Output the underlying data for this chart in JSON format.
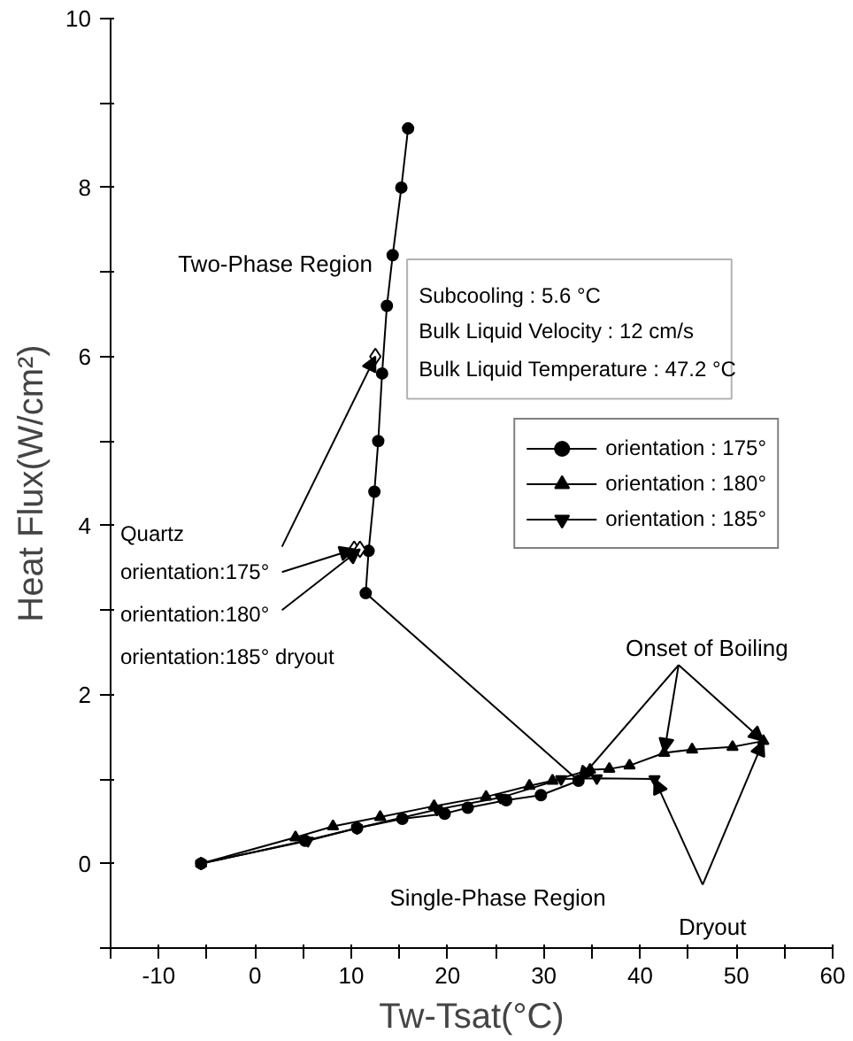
{
  "chart_data": {
    "type": "line",
    "xlabel": "Tw-Tsat(°C)",
    "ylabel": "Heat Flux(W/cm²)",
    "xlim": [
      -15,
      60
    ],
    "ylim": [
      -1,
      10
    ],
    "xticks": [
      {
        "value": -15,
        "label": null
      },
      -10,
      {
        "value": -5,
        "label": null
      },
      0,
      {
        "value": 5,
        "label": null
      },
      10,
      {
        "value": 15,
        "label": null
      },
      20,
      {
        "value": 25,
        "label": null
      },
      30,
      {
        "value": 35,
        "label": null
      },
      40,
      {
        "value": 45,
        "label": null
      },
      50,
      {
        "value": 55,
        "label": null
      },
      60
    ],
    "yticks": [
      {
        "value": -1,
        "label": null
      },
      0,
      {
        "value": 1,
        "label": null
      },
      2,
      {
        "value": 3,
        "label": null
      },
      4,
      {
        "value": 5,
        "label": null
      },
      6,
      {
        "value": 7,
        "label": null
      },
      8,
      {
        "value": 9,
        "label": null
      },
      10
    ],
    "grid": false,
    "legend": "right",
    "line_style": "solid",
    "series": [
      {
        "name": "orientation : 175°",
        "color": "#000000",
        "marker": "circle",
        "x": [
          -5.6,
          5.2,
          10.6,
          15.3,
          19.7,
          22.1,
          26.1,
          29.7,
          33.6,
          11.5,
          11.8,
          12.4,
          12.8,
          13.2,
          13.7,
          14.3,
          15.2,
          15.9
        ],
        "values": [
          0,
          0.27,
          0.42,
          0.53,
          0.59,
          0.66,
          0.75,
          0.81,
          0.98,
          3.2,
          3.7,
          4.4,
          5.0,
          5.8,
          6.6,
          7.2,
          8.0,
          8.7
        ]
      },
      {
        "name": "orientation : 180°",
        "color": "#000000",
        "marker": "triangle",
        "x": [
          -5.6,
          4.2,
          8.1,
          13.0,
          18.6,
          24.0,
          28.5,
          30.9,
          34.8,
          36.8,
          38.9,
          42.5,
          45.4,
          49.6,
          52.8
        ],
        "values": [
          0,
          0.31,
          0.44,
          0.55,
          0.68,
          0.79,
          0.92,
          0.98,
          1.11,
          1.12,
          1.16,
          1.31,
          1.35,
          1.38,
          1.45
        ]
      },
      {
        "name": "orientation : 185°",
        "color": "#000000",
        "marker": "triangle_down",
        "x": [
          -5.6,
          5.5,
          10.6,
          18.9,
          25.5,
          31.8,
          35.5,
          41.5
        ],
        "values": [
          0,
          0.27,
          0.42,
          0.64,
          0.78,
          1.0,
          1.01,
          1.0
        ]
      },
      {
        "type": "scatter",
        "color": "#000000",
        "marker": "diamond",
        "x": [
          12.5,
          10.3,
          10.9
        ],
        "values": [
          6.0,
          3.72,
          3.72
        ]
      }
    ],
    "annotations": [
      "Two-Phase Region",
      "Single-Phase Region",
      {
        "text": "Onset of Boiling",
        "x": 33.6,
        "y": 0.98
      },
      {
        "text": "Dryout",
        "x": 41.5,
        "y": 1.0
      },
      "Quartz",
      {
        "text": "orientation:175°",
        "x": 12.5,
        "y": 6.0
      },
      {
        "text": "orientation:180°",
        "x": 10.9,
        "y": 3.72
      },
      "orientation:185° dryout",
      "Subcooling : 5.6 °C",
      "Bulk Liquid Velocity : 12 cm/s",
      "Bulk Liquid Temperature : 47.2 °C"
    ]
  }
}
